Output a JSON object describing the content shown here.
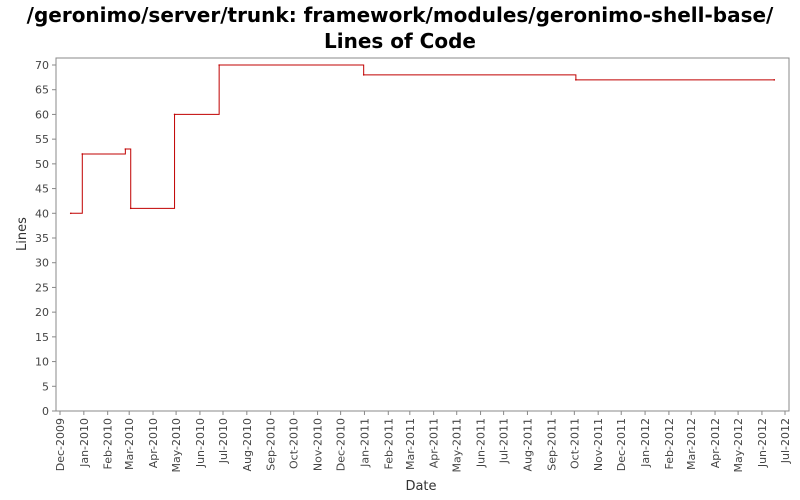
{
  "chart_data": {
    "type": "line",
    "title": "/geronimo/server/trunk: framework/modules/geronimo-shell-base/ Lines of Code",
    "xlabel": "Date",
    "ylabel": "Lines",
    "ylim": [
      0,
      70
    ],
    "yticks": [
      0,
      5,
      10,
      15,
      20,
      25,
      30,
      35,
      40,
      45,
      50,
      55,
      60,
      65,
      70
    ],
    "xlim": [
      "2009-12-01",
      "2012-07-01"
    ],
    "xticks": [
      "Dec-2009",
      "Jan-2010",
      "Feb-2010",
      "Mar-2010",
      "Apr-2010",
      "May-2010",
      "Jun-2010",
      "Jul-2010",
      "Aug-2010",
      "Sep-2010",
      "Oct-2010",
      "Nov-2010",
      "Dec-2010",
      "Jan-2011",
      "Feb-2011",
      "Mar-2011",
      "Apr-2011",
      "May-2011",
      "Jun-2011",
      "Jul-2011",
      "Aug-2011",
      "Sep-2011",
      "Oct-2011",
      "Nov-2011",
      "Dec-2011",
      "Jan-2012",
      "Feb-2012",
      "Mar-2012",
      "Apr-2012",
      "May-2012",
      "Jun-2012",
      "Jul-2012"
    ],
    "grid": false,
    "step": true,
    "series": [
      {
        "color": "#c00000",
        "points": [
          {
            "date": "2009-12-15",
            "value": 40
          },
          {
            "date": "2009-12-30",
            "value": 52
          },
          {
            "date": "2010-02-24",
            "value": 53
          },
          {
            "date": "2010-03-03",
            "value": 41
          },
          {
            "date": "2010-04-29",
            "value": 60
          },
          {
            "date": "2010-06-26",
            "value": 70
          },
          {
            "date": "2010-12-31",
            "value": 68
          },
          {
            "date": "2011-10-03",
            "value": 67
          },
          {
            "date": "2012-06-17",
            "value": 67
          }
        ]
      }
    ]
  }
}
